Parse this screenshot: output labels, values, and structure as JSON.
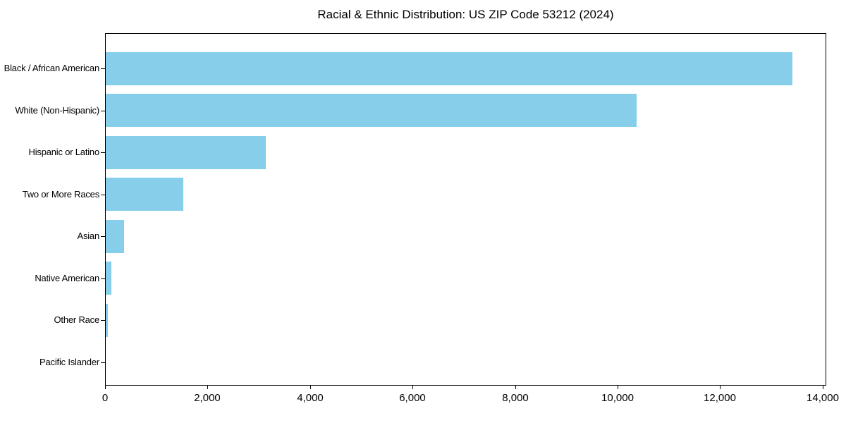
{
  "chart_data": {
    "type": "bar",
    "orientation": "horizontal",
    "title": "Racial & Ethnic Distribution: US ZIP Code 53212 (2024)",
    "categories": [
      "Black / African American",
      "White (Non-Hispanic)",
      "Hispanic or Latino",
      "Two or More Races",
      "Asian",
      "Native American",
      "Other Race",
      "Pacific Islander"
    ],
    "values": [
      13400,
      10350,
      3120,
      1510,
      355,
      105,
      48,
      0
    ],
    "xlabel": "",
    "ylabel": "",
    "xlim": [
      0,
      14070
    ],
    "xticks": [
      0,
      2000,
      4000,
      6000,
      8000,
      10000,
      12000,
      14000
    ],
    "xtick_labels": [
      "0",
      "2,000",
      "4,000",
      "6,000",
      "8,000",
      "10,000",
      "12,000",
      "14,000"
    ],
    "grid": false,
    "legend": null,
    "bar_color": "#87CEEB",
    "spine_color": "#000000",
    "text_color": "#000000",
    "background_color": "#ffffff"
  }
}
